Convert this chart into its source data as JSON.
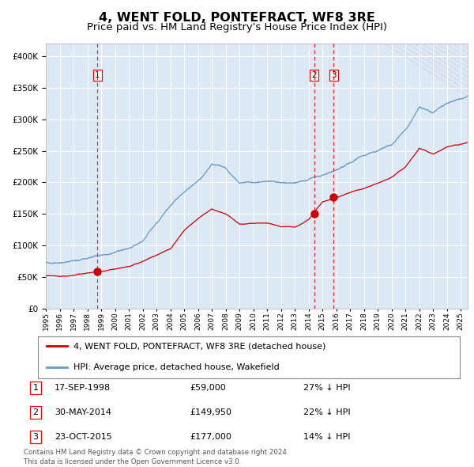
{
  "title": "4, WENT FOLD, PONTEFRACT, WF8 3RE",
  "subtitle": "Price paid vs. HM Land Registry's House Price Index (HPI)",
  "title_fontsize": 12,
  "subtitle_fontsize": 10,
  "bg_color": "#dce9f5",
  "grid_color": "#ffffff",
  "hpi_color": "#6699cc",
  "price_color": "#cc0000",
  "ylim": [
    0,
    420000
  ],
  "yticks": [
    0,
    50000,
    100000,
    150000,
    200000,
    250000,
    300000,
    350000,
    400000
  ],
  "ytick_labels": [
    "£0",
    "£50K",
    "£100K",
    "£150K",
    "£200K",
    "£250K",
    "£300K",
    "£350K",
    "£400K"
  ],
  "transactions": [
    {
      "date_num": 1998.72,
      "price": 59000,
      "label": "1"
    },
    {
      "date_num": 2014.41,
      "price": 149950,
      "label": "2"
    },
    {
      "date_num": 2015.81,
      "price": 177000,
      "label": "3"
    }
  ],
  "legend_line1": "4, WENT FOLD, PONTEFRACT, WF8 3RE (detached house)",
  "legend_line2": "HPI: Average price, detached house, Wakefield",
  "table_rows": [
    {
      "num": "1",
      "date": "17-SEP-1998",
      "price": "£59,000",
      "hpi": "27% ↓ HPI"
    },
    {
      "num": "2",
      "date": "30-MAY-2014",
      "price": "£149,950",
      "hpi": "22% ↓ HPI"
    },
    {
      "num": "3",
      "date": "23-OCT-2015",
      "price": "£177,000",
      "hpi": "14% ↓ HPI"
    }
  ],
  "footnote1": "Contains HM Land Registry data © Crown copyright and database right 2024.",
  "footnote2": "This data is licensed under the Open Government Licence v3.0.",
  "xstart": 1995.0,
  "xend": 2025.5,
  "hpi_key_years": [
    1995,
    1996,
    1997,
    1998,
    1999,
    2000,
    2001,
    2002,
    2003,
    2004,
    2005,
    2006,
    2007,
    2008,
    2009,
    2010,
    2011,
    2012,
    2013,
    2014,
    2015,
    2016,
    2017,
    2018,
    2019,
    2020,
    2021,
    2022,
    2023,
    2024,
    2025.5
  ],
  "hpi_key_vals": [
    73000,
    74000,
    76000,
    79000,
    84000,
    90000,
    97000,
    107000,
    132000,
    158000,
    178000,
    195000,
    220000,
    213000,
    187000,
    188000,
    190000,
    188000,
    188000,
    193000,
    200000,
    207000,
    218000,
    228000,
    237000,
    247000,
    272000,
    308000,
    298000,
    313000,
    322000
  ],
  "price_key_years": [
    1995,
    1996,
    1997,
    1998,
    1999,
    2000,
    2001,
    2002,
    2003,
    2004,
    2005,
    2006,
    2007,
    2008,
    2009,
    2010,
    2011,
    2012,
    2013,
    2014,
    2015,
    2016,
    2017,
    2018,
    2019,
    2020,
    2021,
    2022,
    2023,
    2024,
    2025.5
  ],
  "price_key_vals": [
    52000,
    53000,
    55000,
    59000,
    62000,
    67000,
    72000,
    80000,
    90000,
    100000,
    130000,
    148000,
    163000,
    155000,
    140000,
    142000,
    142000,
    137000,
    138000,
    149950,
    177000,
    184000,
    192000,
    200000,
    208000,
    218000,
    235000,
    265000,
    255000,
    267000,
    273000
  ]
}
